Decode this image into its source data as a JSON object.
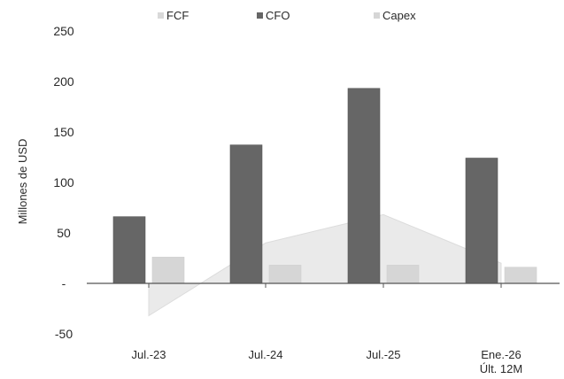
{
  "chart_data": {
    "type": "bar",
    "title": "",
    "xlabel": "",
    "ylabel": "Millones de USD",
    "ylim": [
      -50,
      250
    ],
    "yticks": [
      250,
      200,
      150,
      100,
      50,
      "-",
      -50
    ],
    "grid": false,
    "legend_position": "top",
    "categories": [
      [
        "Jul.-23"
      ],
      [
        "Jul.-24"
      ],
      [
        "Jul.-25"
      ],
      [
        "Ene.-26",
        "Últ. 12M"
      ]
    ],
    "series": [
      {
        "name": "FCF",
        "values": [
          -32,
          40,
          68,
          20
        ],
        "color": "#e6e6e6",
        "style": "area"
      },
      {
        "name": "CFO",
        "values": [
          66,
          137,
          193,
          124
        ],
        "color": "#666666",
        "style": "bar"
      },
      {
        "name": "Capex",
        "values": [
          26,
          18,
          18,
          16
        ],
        "color": "#d6d6d6",
        "style": "bar"
      }
    ]
  }
}
